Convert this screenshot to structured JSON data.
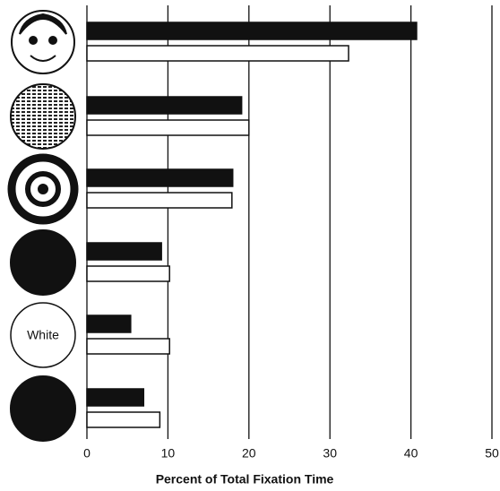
{
  "chart_data": {
    "type": "bar",
    "orientation": "horizontal",
    "xlabel": "Percent of Total Fixation Time",
    "categories": [
      null,
      null,
      null,
      null,
      "White",
      null
    ],
    "series": [
      {
        "color": "#111111",
        "values": [
          40.7,
          19.1,
          18,
          9.2,
          5.4,
          7
        ]
      },
      {
        "color": "#ffffff",
        "values": [
          32.3,
          20,
          17.9,
          10.2,
          10.2,
          9
        ]
      }
    ],
    "xlim": [
      0,
      50
    ],
    "xticks": [
      0,
      10,
      20,
      30,
      40,
      50
    ],
    "grid": true
  }
}
